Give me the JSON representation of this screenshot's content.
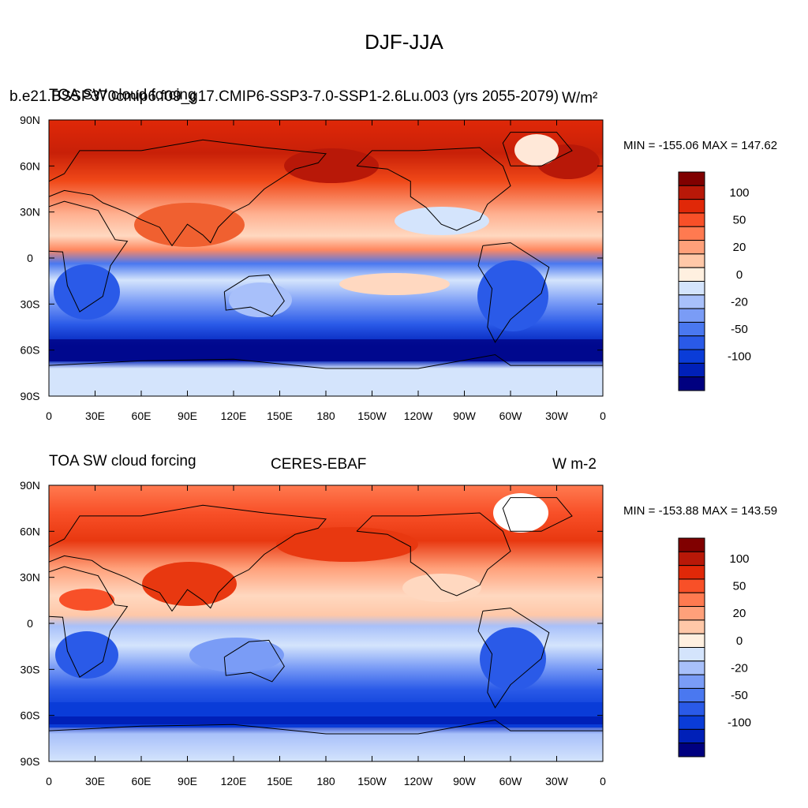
{
  "title": "DJF-JJA",
  "panels": [
    {
      "left_title": "TOA SW cloud forcing",
      "center_title": "b.e21.BSSP370cmip6.f09_g17.CMIP6-SSP3-7.0-SSP1-2.6Lu.003 (yrs 2055-2079)",
      "right_title": "W/m²",
      "stats": "MIN = -155.06 MAX = 147.62"
    },
    {
      "left_title": "TOA SW cloud forcing",
      "center_title": "CERES-EBAF",
      "right_title": "W m-2",
      "stats": "MIN = -153.88 MAX = 143.59"
    }
  ],
  "lat_ticks": [
    "90N",
    "60N",
    "30N",
    "0",
    "30S",
    "60S",
    "90S"
  ],
  "lon_ticks": [
    "0",
    "30E",
    "60E",
    "90E",
    "120E",
    "150E",
    "180",
    "150W",
    "120W",
    "90W",
    "60W",
    "30W",
    "0"
  ],
  "colorbar": {
    "colors": [
      "#000080",
      "#0020b8",
      "#0a3cd8",
      "#2a5ae8",
      "#4a78f0",
      "#7a9cf6",
      "#a8c0fa",
      "#d4e4fc",
      "#fff0e0",
      "#ffc8a8",
      "#ffa07a",
      "#ff7a50",
      "#f85028",
      "#e02808",
      "#b81808",
      "#800000"
    ],
    "labels": [
      "-100",
      "-50",
      "-20",
      "0",
      "20",
      "50",
      "100"
    ]
  },
  "chart_data": [
    {
      "type": "heatmap",
      "title": "DJF-JJA",
      "subtitle": "b.e21.BSSP370cmip6.f09_g17.CMIP6-SSP3-7.0-SSP1-2.6Lu.003 (yrs 2055-2079)",
      "variable": "TOA SW cloud forcing",
      "units": "W/m²",
      "min": -155.06,
      "max": 147.62,
      "xlim": [
        0,
        360
      ],
      "ylim": [
        -90,
        90
      ],
      "colorbar_labels": [
        -100,
        -50,
        -20,
        0,
        20,
        50,
        100
      ]
    },
    {
      "type": "heatmap",
      "title": "DJF-JJA",
      "subtitle": "CERES-EBAF",
      "variable": "TOA SW cloud forcing",
      "units": "W m-2",
      "min": -153.88,
      "max": 143.59,
      "xlim": [
        0,
        360
      ],
      "ylim": [
        -90,
        90
      ],
      "colorbar_labels": [
        -100,
        -50,
        -20,
        0,
        20,
        50,
        100
      ]
    }
  ]
}
